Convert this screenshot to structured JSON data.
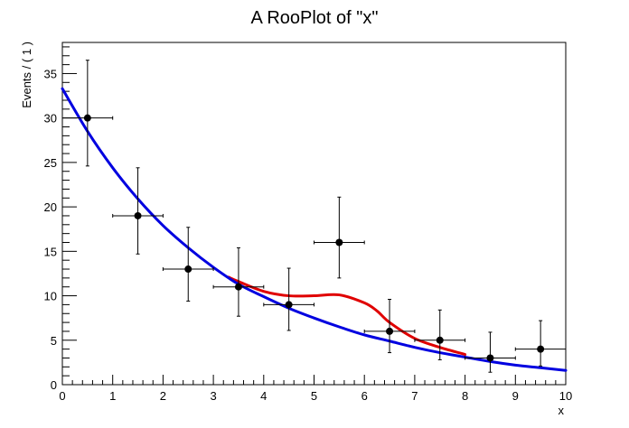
{
  "chart_data": {
    "type": "scatter",
    "title": "A RooPlot of \"x\"",
    "xlabel": "x",
    "ylabel": "Events / ( 1 )",
    "xlim": [
      0,
      10
    ],
    "ylim": [
      0,
      38.5
    ],
    "grid": false,
    "legend": "none",
    "x_ticks": [
      0,
      1,
      2,
      3,
      4,
      5,
      6,
      7,
      8,
      9,
      10
    ],
    "y_ticks": [
      0,
      5,
      10,
      15,
      20,
      25,
      30,
      35
    ],
    "data_points": {
      "x": [
        0.5,
        1.5,
        2.5,
        3.5,
        4.5,
        5.5,
        6.5,
        7.5,
        8.5,
        9.5
      ],
      "y": [
        30,
        19,
        13,
        11,
        9,
        16,
        6,
        5,
        3,
        4
      ],
      "x_err": 0.5,
      "y_err_low": [
        5.4,
        4.3,
        3.6,
        3.3,
        2.9,
        4.0,
        2.4,
        2.2,
        1.6,
        1.9
      ],
      "y_err_high": [
        6.5,
        5.4,
        4.7,
        4.4,
        4.1,
        5.1,
        3.6,
        3.4,
        2.9,
        3.2
      ],
      "color": "#000000"
    },
    "series": [
      {
        "type": "line",
        "color": "#e00000",
        "x": [
          3.3,
          3.5,
          4.0,
          4.5,
          5.0,
          5.5,
          6.0,
          6.25,
          6.5,
          7.0,
          7.5,
          8.0
        ],
        "y": [
          12.1,
          11.6,
          10.5,
          10.0,
          10.0,
          10.1,
          9.2,
          8.3,
          7.0,
          5.2,
          4.2,
          3.4
        ]
      },
      {
        "type": "line",
        "color": "#0000e0",
        "x": [
          0,
          0.5,
          1,
          1.5,
          2,
          2.5,
          3,
          3.5,
          4,
          4.5,
          5,
          5.5,
          6,
          6.5,
          7,
          7.5,
          8,
          8.5,
          9,
          9.5,
          10
        ],
        "y": [
          33.3,
          28.5,
          24.4,
          20.9,
          17.9,
          15.4,
          13.2,
          11.3,
          9.9,
          8.6,
          7.5,
          6.5,
          5.6,
          4.9,
          4.2,
          3.6,
          3.1,
          2.6,
          2.2,
          1.9,
          1.6
        ]
      }
    ]
  }
}
